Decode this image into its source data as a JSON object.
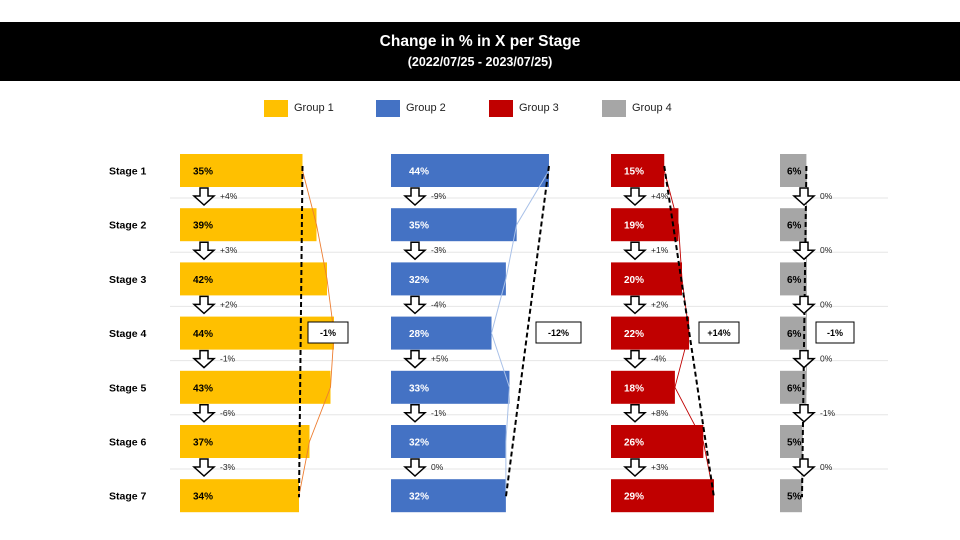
{
  "title": "Change in % in X per Stage",
  "subtitle": "(2022/07/25 - 2023/07/25)",
  "chart_data": {
    "type": "bar",
    "orientation": "horizontal",
    "title": "Change in % in X per Stage",
    "subtitle": "(2022/07/25 - 2023/07/25)",
    "categories": [
      "Stage 1",
      "Stage 2",
      "Stage 3",
      "Stage 4",
      "Stage 5",
      "Stage 6",
      "Stage 7"
    ],
    "legend_position": "top",
    "grid": true,
    "series": [
      {
        "name": "Group 1",
        "color": "#FFC000",
        "values": [
          35,
          39,
          42,
          44,
          43,
          37,
          34
        ],
        "value_labels": [
          "35%",
          "39%",
          "42%",
          "44%",
          "43%",
          "37%",
          "34%"
        ],
        "step_changes": [
          "+4%",
          "+3%",
          "+2%",
          "-1%",
          "-6%",
          "-3%"
        ],
        "total_change": "-1%"
      },
      {
        "name": "Group 2",
        "color": "#4472C4",
        "values": [
          44,
          35,
          32,
          28,
          33,
          32,
          32
        ],
        "value_labels": [
          "44%",
          "35%",
          "32%",
          "28%",
          "33%",
          "32%",
          "32%"
        ],
        "step_changes": [
          "-9%",
          "-3%",
          "-4%",
          "+5%",
          "-1%",
          "0%"
        ],
        "total_change": "-12%"
      },
      {
        "name": "Group 3",
        "color": "#C00000",
        "values": [
          15,
          19,
          20,
          22,
          18,
          26,
          29
        ],
        "value_labels": [
          "15%",
          "19%",
          "20%",
          "22%",
          "18%",
          "26%",
          "29%"
        ],
        "step_changes": [
          "+4%",
          "+1%",
          "+2%",
          "-4%",
          "+8%",
          "+3%"
        ],
        "total_change": "+14%"
      },
      {
        "name": "Group 4",
        "color": "#A6A6A6",
        "values": [
          6,
          6,
          6,
          6,
          6,
          5,
          5
        ],
        "value_labels": [
          "6%",
          "6%",
          "6%",
          "6%",
          "6%",
          "5%",
          "5%"
        ],
        "step_changes": [
          "0%",
          "0%",
          "0%",
          "0%",
          "-1%",
          "0%"
        ],
        "total_change": "-1%"
      }
    ]
  }
}
